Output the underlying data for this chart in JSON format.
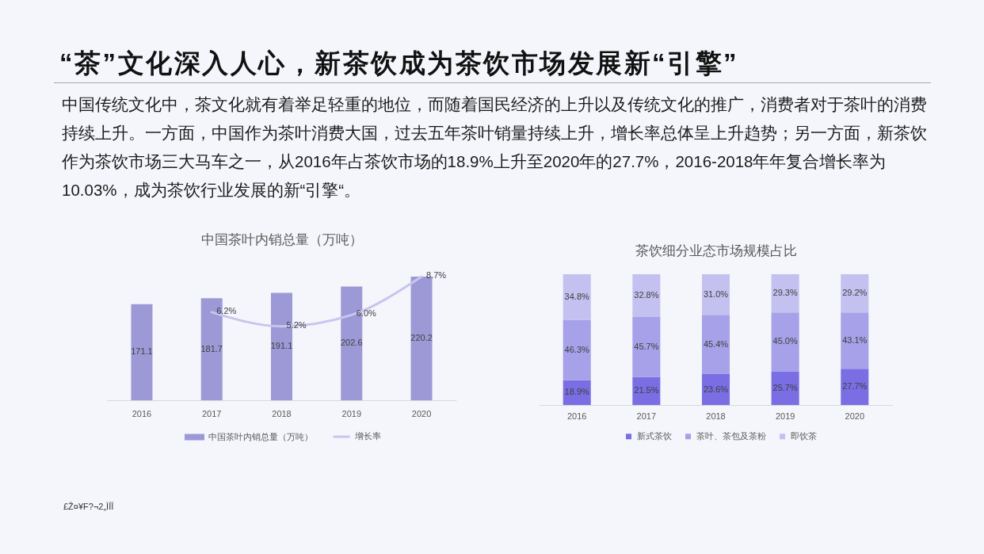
{
  "chart_data": [
    {
      "type": "other",
      "title": "“茶”文化深入人心，新茶饮成为茶饮市场发展新“引擎”",
      "annotations": [
        "中国传统文化中，茶文化就有着举足轻重的地位，而随着国民经济的上升以及传统文化的推广，消费者对于茶叶的消费持续上升。一方面，中国作为茶叶消费大国，过去五年茶叶销量持续上升，增长率总体呈上升趋势；另一方面，新茶饮作为茶饮市场三大马车之一，从2016年占茶饮市场的18.9%上升至2020年的27.7%，2016-2018年年复合增长率为10.03%，成为茶饮行业发展的新“引擎“。",
        "£Ž¤¥F?¬2„ÌÎÎ"
      ]
    },
    {
      "type": "bar",
      "title": "中国茶叶内销总量（万吨）",
      "categories": [
        "2016",
        "2017",
        "2018",
        "2019",
        "2020"
      ],
      "tick_labels": "x",
      "legend": "bottom",
      "series": [
        {
          "name": "中国茶叶内销总量（万吨）",
          "color": "#9d99d7",
          "values": [
            171.1,
            181.7,
            191.1,
            202.6,
            220.2
          ],
          "value_labels": [
            "171.1",
            "181.7",
            "191.1",
            "202.6",
            "220.2"
          ]
        },
        {
          "name": "增长率",
          "type": "line",
          "axis": "y2",
          "color": "#c8c5ee",
          "values": [
            null,
            6.2,
            5.2,
            6.0,
            8.7
          ],
          "value_labels": [
            null,
            "6.2%",
            "5.2%",
            "6.0%",
            "8.7%"
          ]
        }
      ]
    },
    {
      "type": "bar",
      "title": "茶饮细分业态市场规模占比",
      "categories": [
        "2016",
        "2017",
        "2018",
        "2019",
        "2020"
      ],
      "stacked": true,
      "tick_labels": "x",
      "legend": "bottom",
      "series": [
        {
          "name": "新式茶饮",
          "color": "#7a6ee4",
          "values": [
            18.9,
            21.5,
            23.6,
            25.7,
            27.7
          ],
          "value_labels": [
            "18.9%",
            "21.5%",
            "23.6%",
            "25.7%",
            "27.7%"
          ]
        },
        {
          "name": "茶叶、茶包及茶粉",
          "color": "#a6a1e8",
          "values": [
            46.3,
            45.7,
            45.4,
            45.0,
            43.1
          ],
          "value_labels": [
            "46.3%",
            "45.7%",
            "45.4%",
            "45.0%",
            "43.1%"
          ]
        },
        {
          "name": "即饮茶",
          "color": "#c4c1f0",
          "values": [
            34.8,
            32.8,
            31.0,
            29.3,
            29.2
          ],
          "value_labels": [
            "34.8%",
            "32.8%",
            "31.0%",
            "29.3%",
            "29.2%"
          ]
        }
      ]
    }
  ]
}
